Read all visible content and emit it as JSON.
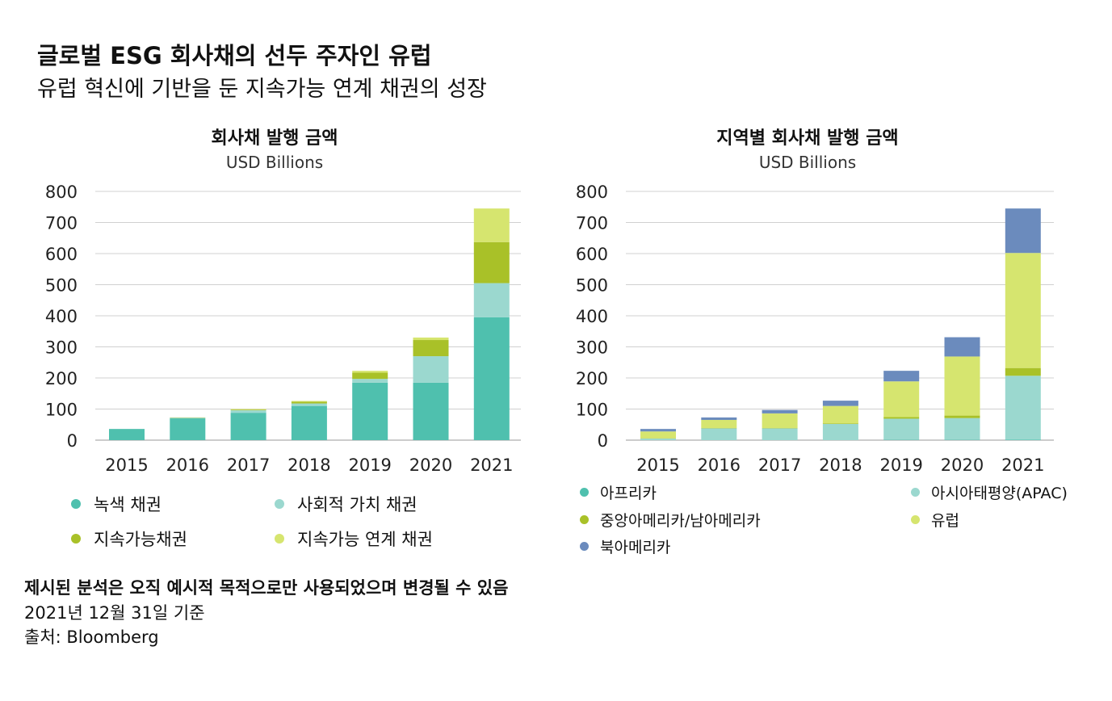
{
  "page": {
    "title": "글로벌 ESG 회사채의 선두 주자인 유럽",
    "subtitle": "유럽 혁신에 기반을 둔 지속가능 연계 채권의 성장",
    "footnote_bold": "제시된 분석은 오직 예시적 목적으로만 사용되었으며 변경될 수 있음",
    "footnote_date": "2021년 12월 31일 기준",
    "footnote_source": "출처: Bloomberg"
  },
  "chart_data": [
    {
      "type": "bar",
      "stacked": true,
      "title": "회사채 발행 금액",
      "unit": "USD Billions",
      "categories": [
        "2015",
        "2016",
        "2017",
        "2018",
        "2019",
        "2020",
        "2021"
      ],
      "ylim": [
        0,
        800
      ],
      "yticks": [
        "0",
        "100",
        "200",
        "300",
        "400",
        "500",
        "600",
        "700",
        "800"
      ],
      "grid": true,
      "legend_position": "bottom",
      "series": [
        {
          "name": "녹색 채권",
          "color": "#4fc0ae",
          "values": [
            36,
            70,
            88,
            110,
            185,
            185,
            395
          ]
        },
        {
          "name": "사회적 가치 채권",
          "color": "#9bd8cf",
          "values": [
            0,
            2,
            8,
            8,
            12,
            85,
            110
          ]
        },
        {
          "name": "지속가능채권",
          "color": "#a9c128",
          "values": [
            0,
            1,
            2,
            6,
            20,
            52,
            132
          ]
        },
        {
          "name": "지속가능 연계 채권",
          "color": "#d6e56f",
          "values": [
            0,
            0,
            2,
            2,
            6,
            8,
            108
          ]
        }
      ]
    },
    {
      "type": "bar",
      "stacked": true,
      "title": "지역별 회사채 발행 금액",
      "unit": "USD Billions",
      "categories": [
        "2015",
        "2016",
        "2017",
        "2018",
        "2019",
        "2020",
        "2021"
      ],
      "ylim": [
        0,
        800
      ],
      "yticks": [
        "0",
        "100",
        "200",
        "300",
        "400",
        "500",
        "600",
        "700",
        "800"
      ],
      "grid": true,
      "legend_position": "bottom",
      "series": [
        {
          "name": "아프리카",
          "color": "#4fc0ae",
          "values": [
            0,
            0,
            0,
            0,
            1,
            1,
            2
          ]
        },
        {
          "name": "아시아태평양(APAC)",
          "color": "#9bd8cf",
          "values": [
            5,
            38,
            38,
            52,
            68,
            70,
            205
          ]
        },
        {
          "name": "중앙아메리카/남아메리카",
          "color": "#a9c128",
          "values": [
            1,
            1,
            1,
            2,
            5,
            8,
            25
          ]
        },
        {
          "name": "유럽",
          "color": "#d6e56f",
          "values": [
            22,
            26,
            47,
            56,
            115,
            190,
            370
          ]
        },
        {
          "name": "북아메리카",
          "color": "#6b8bbd",
          "values": [
            8,
            8,
            11,
            17,
            34,
            62,
            143
          ]
        }
      ]
    }
  ]
}
